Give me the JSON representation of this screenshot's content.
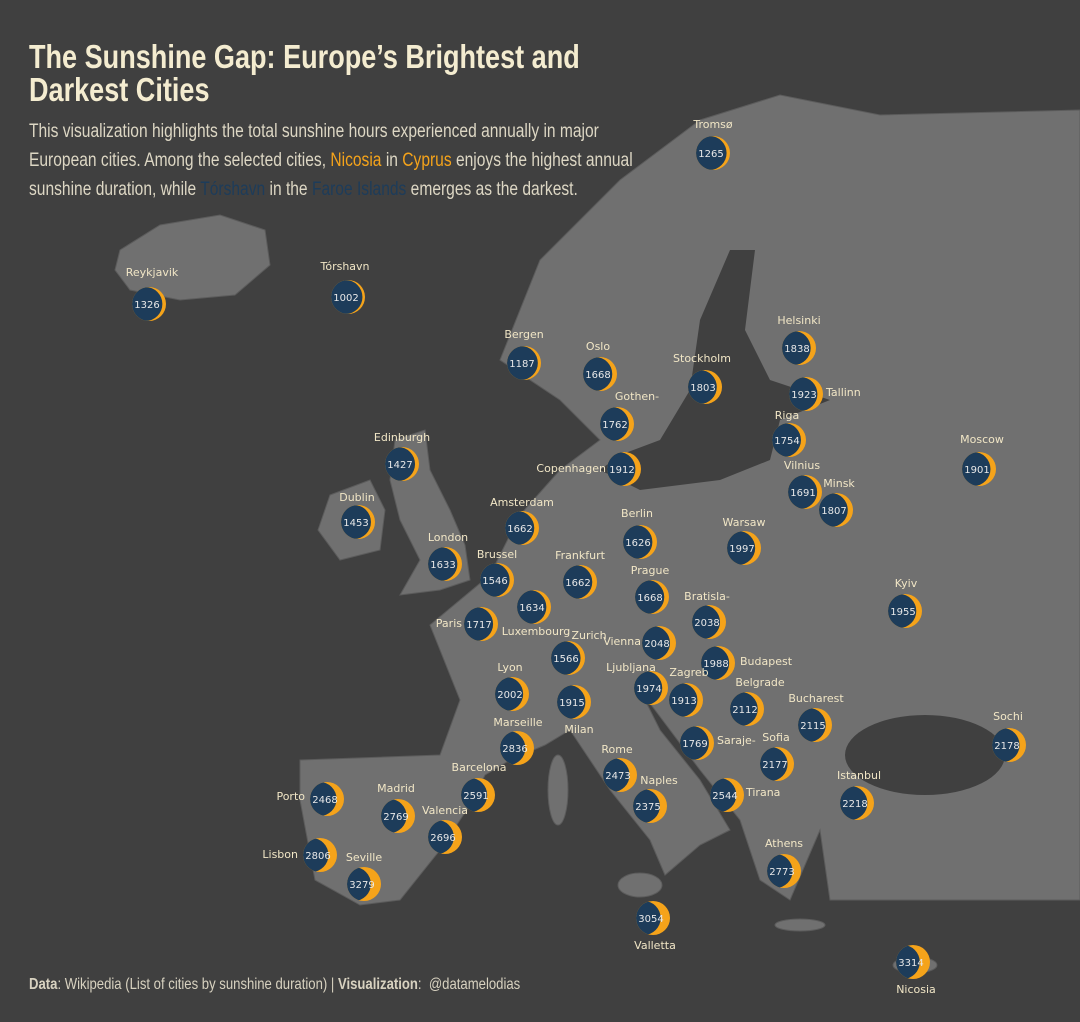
{
  "title": "The Sunshine Gap: Europe’s Brightest and Darkest Cities",
  "description": [
    {
      "text": "This visualization highlights the total sunshine hours experienced annually in major European cities. Among the selected cities, "
    },
    {
      "text": "Nicosia",
      "color": "#f5a31a"
    },
    {
      "text": " in "
    },
    {
      "text": "Cyprus",
      "color": "#f5a31a"
    },
    {
      "text": " enjoys the highest annual sunshine duration, while "
    },
    {
      "text": "Tórshavn",
      "color": "#1d3c5a"
    },
    {
      "text": " in the "
    },
    {
      "text": "Faroe Islands",
      "color": "#1d3c5a"
    },
    {
      "text": " emerges as the darkest."
    }
  ],
  "cities": [
    {
      "name": "Tromsø",
      "hours": 1265
    },
    {
      "name": "Reykjavik",
      "hours": 1326
    },
    {
      "name": "Tórshavn",
      "hours": 1002
    },
    {
      "name": "Bergen",
      "hours": 1187
    },
    {
      "name": "Oslo",
      "hours": 1668
    },
    {
      "name": "Stockholm",
      "hours": 1803
    },
    {
      "name": "Helsinki",
      "hours": 1838
    },
    {
      "name": "Tallinn",
      "hours": 1923
    },
    {
      "name": "Gothen-",
      "hours": 1762
    },
    {
      "name": "Riga",
      "hours": 1754
    },
    {
      "name": "Moscow",
      "hours": 1901
    },
    {
      "name": "Edinburgh",
      "hours": 1427
    },
    {
      "name": "Copenhagen",
      "hours": 1912
    },
    {
      "name": "Vilnius",
      "hours": 1691
    },
    {
      "name": "Minsk",
      "hours": 1807
    },
    {
      "name": "Dublin",
      "hours": 1453
    },
    {
      "name": "Amsterdam",
      "hours": 1662
    },
    {
      "name": "Berlin",
      "hours": 1626
    },
    {
      "name": "Warsaw",
      "hours": 1997
    },
    {
      "name": "London",
      "hours": 1633
    },
    {
      "name": "Brussel",
      "hours": 1546
    },
    {
      "name": "Frankfurt",
      "hours": 1662
    },
    {
      "name": "Prague",
      "hours": 1668
    },
    {
      "name": "Kyiv",
      "hours": 1955
    },
    {
      "name": "Luxembourg",
      "hours": 1634
    },
    {
      "name": "Bratisla-",
      "hours": 2038
    },
    {
      "name": "Paris",
      "hours": 1717
    },
    {
      "name": "Zurich",
      "hours": 1566
    },
    {
      "name": "Vienna",
      "hours": 2048
    },
    {
      "name": "Budapest",
      "hours": 1988
    },
    {
      "name": "Lyon",
      "hours": 2002
    },
    {
      "name": "Ljubljana",
      "hours": 1974
    },
    {
      "name": "Zagreb",
      "hours": 1913
    },
    {
      "name": "Belgrade",
      "hours": 2112
    },
    {
      "name": "Milan",
      "hours": 1915
    },
    {
      "name": "Bucharest",
      "hours": 2115
    },
    {
      "name": "Marseille",
      "hours": 2836
    },
    {
      "name": "Sochi",
      "hours": 2178
    },
    {
      "name": "Saraje-",
      "hours": 1769
    },
    {
      "name": "Sofia",
      "hours": 2177
    },
    {
      "name": "Barcelona",
      "hours": 2591
    },
    {
      "name": "Rome",
      "hours": 2473
    },
    {
      "name": "Istanbul",
      "hours": 2218
    },
    {
      "name": "Porto",
      "hours": 2468
    },
    {
      "name": "Naples",
      "hours": 2375
    },
    {
      "name": "Tirana",
      "hours": 2544
    },
    {
      "name": "Madrid",
      "hours": 2769
    },
    {
      "name": "Valencia",
      "hours": 2696
    },
    {
      "name": "Lisbon",
      "hours": 2806
    },
    {
      "name": "Athens",
      "hours": 2773
    },
    {
      "name": "Seville",
      "hours": 3279
    },
    {
      "name": "Valletta",
      "hours": 3054
    },
    {
      "name": "Nicosia",
      "hours": 3314
    }
  ],
  "footer": [
    {
      "text": "Data",
      "bold": true
    },
    {
      "text": ": Wikipedia (List of cities by sunshine duration) | "
    },
    {
      "text": "Visualization",
      "bold": true
    },
    {
      "text": ":  @datamelodias"
    }
  ]
}
